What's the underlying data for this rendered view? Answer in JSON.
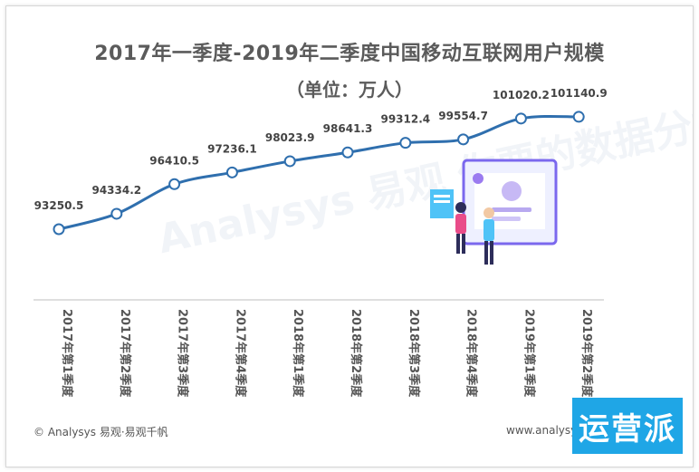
{
  "page": {
    "title": "2017年一季度-2019年二季度中国移动互联网用户规模",
    "subtitle": "（单位：万人）",
    "footer_left": "© Analysys 易观·易观千帆",
    "footer_right": "www.analysys.cn",
    "badge": "运营派",
    "watermark": "Analysys 易观 你要的数据分析力"
  },
  "chart_data": {
    "type": "line",
    "categories": [
      "2017年第1季度",
      "2017年第2季度",
      "2017年第3季度",
      "2017年第4季度",
      "2018年第1季度",
      "2018年第2季度",
      "2018年第3季度",
      "2018年第4季度",
      "2019年第1季度",
      "2019年第2季度"
    ],
    "values": [
      93250.5,
      94334.2,
      96410.5,
      97236.1,
      98023.9,
      98641.3,
      99312.4,
      99554.7,
      101020.2,
      101140.9
    ],
    "value_labels": [
      "93250.5",
      "94334.2",
      "96410.5",
      "97236.1",
      "98023.9",
      "98641.3",
      "99312.4",
      "99554.7",
      "101020.2",
      "101140.9"
    ],
    "line_color": "#2f6fae",
    "marker_fill": "#ffffff",
    "grid": false,
    "legend": "none"
  }
}
